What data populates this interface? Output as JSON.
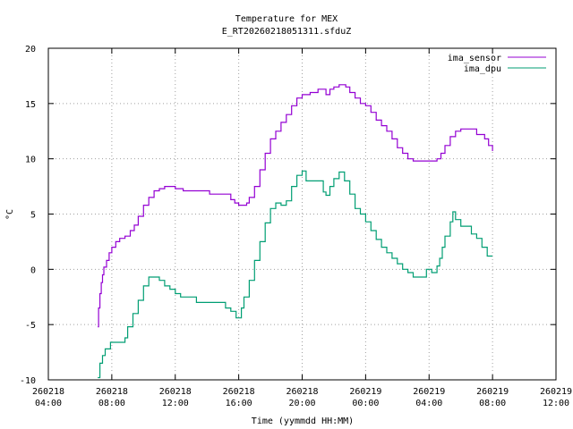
{
  "chart_data": {
    "type": "line",
    "title": "Temperature for MEX",
    "subtitle": "E_RT20260218051311.sfduZ",
    "xlabel": "Time (yymmdd HH:MM)",
    "ylabel": "°C",
    "xlim": [
      "260218 04:00",
      "260219 12:00"
    ],
    "ylim": [
      -10,
      20
    ],
    "y_ticks": [
      -10,
      -5,
      0,
      5,
      10,
      15,
      20
    ],
    "x_ticks": [
      {
        "date": "260218",
        "time": "04:00"
      },
      {
        "date": "260218",
        "time": "08:00"
      },
      {
        "date": "260218",
        "time": "12:00"
      },
      {
        "date": "260218",
        "time": "16:00"
      },
      {
        "date": "260218",
        "time": "20:00"
      },
      {
        "date": "260219",
        "time": "00:00"
      },
      {
        "date": "260219",
        "time": "04:00"
      },
      {
        "date": "260219",
        "time": "08:00"
      },
      {
        "date": "260219",
        "time": "12:00"
      }
    ],
    "grid": true,
    "legend_position": "top-right",
    "series": [
      {
        "name": "ima_sensor",
        "color": "#9400d3",
        "points": [
          [
            "260218 07:07",
            -5.2
          ],
          [
            "260218 07:10",
            -3.5
          ],
          [
            "260218 07:15",
            -2.2
          ],
          [
            "260218 07:20",
            -1.2
          ],
          [
            "260218 07:25",
            -0.5
          ],
          [
            "260218 07:30",
            0.2
          ],
          [
            "260218 07:40",
            0.8
          ],
          [
            "260218 07:50",
            1.5
          ],
          [
            "260218 08:00",
            2.0
          ],
          [
            "260218 08:15",
            2.5
          ],
          [
            "260218 08:30",
            2.8
          ],
          [
            "260218 08:50",
            3.0
          ],
          [
            "260218 09:10",
            3.5
          ],
          [
            "260218 09:25",
            4.0
          ],
          [
            "260218 09:40",
            4.8
          ],
          [
            "260218 10:00",
            5.8
          ],
          [
            "260218 10:20",
            6.5
          ],
          [
            "260218 10:40",
            7.1
          ],
          [
            "260218 11:00",
            7.3
          ],
          [
            "260218 11:20",
            7.5
          ],
          [
            "260218 12:00",
            7.3
          ],
          [
            "260218 12:30",
            7.1
          ],
          [
            "260218 14:00",
            7.1
          ],
          [
            "260218 14:10",
            6.8
          ],
          [
            "260218 15:20",
            6.8
          ],
          [
            "260218 15:30",
            6.3
          ],
          [
            "260218 15:45",
            6.0
          ],
          [
            "260218 16:00",
            5.8
          ],
          [
            "260218 16:30",
            6.0
          ],
          [
            "260218 16:40",
            6.5
          ],
          [
            "260218 17:00",
            7.5
          ],
          [
            "260218 17:20",
            9.0
          ],
          [
            "260218 17:40",
            10.5
          ],
          [
            "260218 18:00",
            11.8
          ],
          [
            "260218 18:20",
            12.5
          ],
          [
            "260218 18:40",
            13.3
          ],
          [
            "260218 19:00",
            14.0
          ],
          [
            "260218 19:20",
            14.8
          ],
          [
            "260218 19:40",
            15.5
          ],
          [
            "260218 20:00",
            15.8
          ],
          [
            "260218 20:30",
            16.0
          ],
          [
            "260218 21:00",
            16.3
          ],
          [
            "260218 21:30",
            15.8
          ],
          [
            "260218 21:45",
            16.3
          ],
          [
            "260218 22:00",
            16.5
          ],
          [
            "260218 22:20",
            16.7
          ],
          [
            "260218 22:45",
            16.5
          ],
          [
            "260218 23:00",
            16.0
          ],
          [
            "260218 23:20",
            15.5
          ],
          [
            "260218 23:40",
            15.0
          ],
          [
            "260219 00:00",
            14.8
          ],
          [
            "260219 00:20",
            14.2
          ],
          [
            "260219 00:40",
            13.5
          ],
          [
            "260219 01:00",
            13.0
          ],
          [
            "260219 01:20",
            12.5
          ],
          [
            "260219 01:40",
            11.8
          ],
          [
            "260219 02:00",
            11.0
          ],
          [
            "260219 02:20",
            10.5
          ],
          [
            "260219 02:40",
            10.0
          ],
          [
            "260219 03:00",
            9.8
          ],
          [
            "260219 04:00",
            9.8
          ],
          [
            "260219 04:30",
            10.0
          ],
          [
            "260219 04:45",
            10.5
          ],
          [
            "260219 05:00",
            11.2
          ],
          [
            "260219 05:20",
            12.0
          ],
          [
            "260219 05:40",
            12.5
          ],
          [
            "260219 06:00",
            12.7
          ],
          [
            "260219 06:40",
            12.7
          ],
          [
            "260219 07:00",
            12.2
          ],
          [
            "260219 07:30",
            11.8
          ],
          [
            "260219 07:45",
            11.2
          ],
          [
            "260219 08:00",
            10.7
          ]
        ]
      },
      {
        "name": "ima_dpu",
        "color": "#009e73",
        "points": [
          [
            "260218 07:07",
            -9.8
          ],
          [
            "260218 07:15",
            -8.5
          ],
          [
            "260218 07:25",
            -7.8
          ],
          [
            "260218 07:35",
            -7.2
          ],
          [
            "260218 07:55",
            -6.6
          ],
          [
            "260218 08:30",
            -6.6
          ],
          [
            "260218 08:50",
            -6.2
          ],
          [
            "260218 09:00",
            -5.2
          ],
          [
            "260218 09:20",
            -4.0
          ],
          [
            "260218 09:40",
            -2.8
          ],
          [
            "260218 10:00",
            -1.5
          ],
          [
            "260218 10:20",
            -0.7
          ],
          [
            "260218 10:50",
            -0.7
          ],
          [
            "260218 11:00",
            -1.0
          ],
          [
            "260218 11:20",
            -1.5
          ],
          [
            "260218 11:40",
            -1.8
          ],
          [
            "260218 12:00",
            -2.2
          ],
          [
            "260218 12:20",
            -2.5
          ],
          [
            "260218 13:00",
            -2.5
          ],
          [
            "260218 13:20",
            -3.0
          ],
          [
            "260218 15:00",
            -3.0
          ],
          [
            "260218 15:10",
            -3.5
          ],
          [
            "260218 15:30",
            -3.8
          ],
          [
            "260218 15:50",
            -4.4
          ],
          [
            "260218 16:10",
            -3.5
          ],
          [
            "260218 16:20",
            -2.5
          ],
          [
            "260218 16:40",
            -1.0
          ],
          [
            "260218 17:00",
            0.8
          ],
          [
            "260218 17:20",
            2.5
          ],
          [
            "260218 17:40",
            4.2
          ],
          [
            "260218 18:00",
            5.5
          ],
          [
            "260218 18:20",
            6.0
          ],
          [
            "260218 18:40",
            5.8
          ],
          [
            "260218 19:00",
            6.2
          ],
          [
            "260218 19:20",
            7.5
          ],
          [
            "260218 19:40",
            8.5
          ],
          [
            "260218 20:00",
            8.9
          ],
          [
            "260218 20:15",
            8.0
          ],
          [
            "260218 21:00",
            8.0
          ],
          [
            "260218 21:20",
            7.0
          ],
          [
            "260218 21:30",
            6.7
          ],
          [
            "260218 21:45",
            7.5
          ],
          [
            "260218 22:00",
            8.2
          ],
          [
            "260218 22:20",
            8.8
          ],
          [
            "260218 22:40",
            8.0
          ],
          [
            "260218 23:00",
            6.8
          ],
          [
            "260218 23:20",
            5.5
          ],
          [
            "260218 23:40",
            5.0
          ],
          [
            "260219 00:00",
            4.3
          ],
          [
            "260219 00:20",
            3.5
          ],
          [
            "260219 00:40",
            2.7
          ],
          [
            "260219 01:00",
            2.0
          ],
          [
            "260219 01:20",
            1.5
          ],
          [
            "260219 01:40",
            1.0
          ],
          [
            "260219 02:00",
            0.5
          ],
          [
            "260219 02:20",
            0.0
          ],
          [
            "260219 02:40",
            -0.3
          ],
          [
            "260219 03:00",
            -0.7
          ],
          [
            "260219 03:40",
            -0.7
          ],
          [
            "260219 03:50",
            0.0
          ],
          [
            "260219 04:10",
            -0.3
          ],
          [
            "260219 04:30",
            0.3
          ],
          [
            "260219 04:40",
            1.0
          ],
          [
            "260219 04:50",
            2.0
          ],
          [
            "260219 05:00",
            3.0
          ],
          [
            "260219 05:20",
            4.3
          ],
          [
            "260219 05:30",
            5.2
          ],
          [
            "260219 05:40",
            4.5
          ],
          [
            "260219 06:00",
            3.9
          ],
          [
            "260219 06:30",
            3.9
          ],
          [
            "260219 06:40",
            3.2
          ],
          [
            "260219 07:00",
            2.8
          ],
          [
            "260219 07:20",
            2.0
          ],
          [
            "260219 07:40",
            1.2
          ],
          [
            "260219 08:00",
            1.2
          ]
        ]
      }
    ]
  }
}
